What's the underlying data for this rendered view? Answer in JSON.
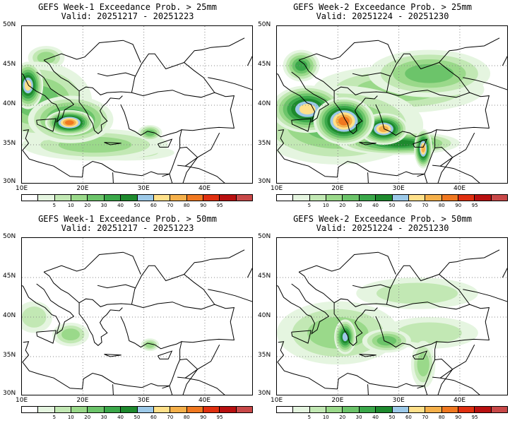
{
  "panels": [
    {
      "title_line1": "GEFS Week-1 Exceedance Prob. > 25mm",
      "title_line2": "Valid: 20251217 - 20251223",
      "intensity": 1
    },
    {
      "title_line1": "GEFS Week-2 Exceedance Prob. > 25mm",
      "title_line2": "Valid: 20251224 - 20251230",
      "intensity": 2
    },
    {
      "title_line1": "GEFS Week-1 Exceedance Prob. > 50mm",
      "title_line2": "Valid: 20251217 - 20251223",
      "intensity": 0
    },
    {
      "title_line1": "GEFS Week-2 Exceedance Prob. > 50mm",
      "title_line2": "Valid: 20251224 - 20251230",
      "intensity": 1
    }
  ],
  "lat_labels": [
    "50N",
    "45N",
    "40N",
    "35N",
    "30N"
  ],
  "lon_labels": [
    "10E",
    "20E",
    "30E",
    "40E"
  ],
  "colorbar_labels": [
    "5",
    "10",
    "20",
    "30",
    "40",
    "50",
    "60",
    "70",
    "80",
    "90",
    "95"
  ],
  "colorbar_colors": [
    "#ffffff",
    "#e5f5e0",
    "#c2e8b4",
    "#9ad98a",
    "#6cc46a",
    "#3ba84a",
    "#1e8a2e",
    "#9cc9e8",
    "#ffe08a",
    "#f5b04a",
    "#f07820",
    "#e03010",
    "#b81010",
    "#c84848"
  ]
}
